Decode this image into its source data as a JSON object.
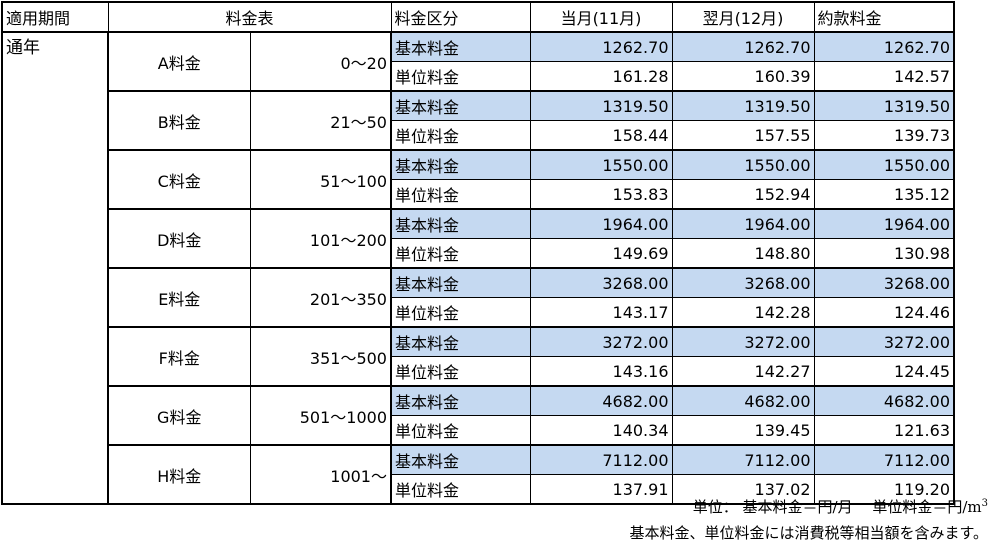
{
  "headers": {
    "period": "適用期間",
    "table": "料金表",
    "category": "料金区分",
    "current": "当月(11月)",
    "next": "翌月(12月)",
    "tariff": "約款料金"
  },
  "period": "通年",
  "basic_label": "基本料金",
  "unit_label": "単位料金",
  "highlight_color": "#c5d9f1",
  "rows": [
    {
      "name": "A料金",
      "range": "0～20",
      "basic": [
        "1262.70",
        "1262.70",
        "1262.70"
      ],
      "unit": [
        "161.28",
        "160.39",
        "142.57"
      ]
    },
    {
      "name": "B料金",
      "range": "21～50",
      "basic": [
        "1319.50",
        "1319.50",
        "1319.50"
      ],
      "unit": [
        "158.44",
        "157.55",
        "139.73"
      ]
    },
    {
      "name": "C料金",
      "range": "51～100",
      "basic": [
        "1550.00",
        "1550.00",
        "1550.00"
      ],
      "unit": [
        "153.83",
        "152.94",
        "135.12"
      ]
    },
    {
      "name": "D料金",
      "range": "101～200",
      "basic": [
        "1964.00",
        "1964.00",
        "1964.00"
      ],
      "unit": [
        "149.69",
        "148.80",
        "130.98"
      ]
    },
    {
      "name": "E料金",
      "range": "201～350",
      "basic": [
        "3268.00",
        "3268.00",
        "3268.00"
      ],
      "unit": [
        "143.17",
        "142.28",
        "124.46"
      ]
    },
    {
      "name": "F料金",
      "range": "351～500",
      "basic": [
        "3272.00",
        "3272.00",
        "3272.00"
      ],
      "unit": [
        "143.16",
        "142.27",
        "124.45"
      ]
    },
    {
      "name": "G料金",
      "range": "501～1000",
      "basic": [
        "4682.00",
        "4682.00",
        "4682.00"
      ],
      "unit": [
        "140.34",
        "139.45",
        "121.63"
      ]
    },
    {
      "name": "H料金",
      "range": "1001～",
      "basic": [
        "7112.00",
        "7112.00",
        "7112.00"
      ],
      "unit": [
        "137.91",
        "137.02",
        "119.20"
      ]
    }
  ],
  "footer": {
    "unit_note": "単位： 基本料金＝円/月　 単位料金＝円/m",
    "unit_sup": "3",
    "tax_note": "基本料金、単位料金には消費税等相当額を含みます。"
  }
}
